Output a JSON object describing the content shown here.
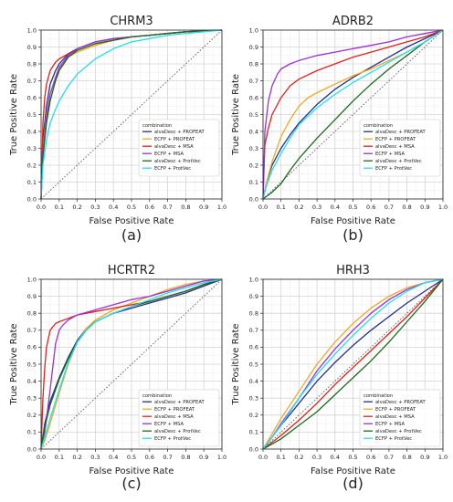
{
  "figure": {
    "series_colors": {
      "alvaDesc + PROFEAT": "#1f2f8f",
      "ECFP + PROFEAT": "#f5a623",
      "alvaDesc + MSA": "#e3201b",
      "ECFP + MSA": "#9b30d9",
      "alvaDesc + ProtVec": "#1a6b1a",
      "ECFP + ProtVec": "#22e0f0"
    },
    "diagonal_color": "#555555"
  },
  "chart_data": [
    {
      "type": "line",
      "panel_label": "(a)",
      "title": "CHRM3",
      "xlabel": "False Positive Rate",
      "ylabel": "True Positive Rate",
      "xlim": [
        0,
        1
      ],
      "ylim": [
        0,
        1
      ],
      "xticks": [
        "0.0",
        "0.1",
        "0.2",
        "0.3",
        "0.4",
        "0.5",
        "0.6",
        "0.7",
        "0.8",
        "0.9",
        "1.0"
      ],
      "yticks": [
        "0.0",
        "0.1",
        "0.2",
        "0.3",
        "0.4",
        "0.5",
        "0.6",
        "0.7",
        "0.8",
        "0.9",
        "1.0"
      ],
      "grid": true,
      "legend": {
        "title": "combination",
        "position": "center-right"
      },
      "series": [
        {
          "name": "alvaDesc + PROFEAT",
          "x": [
            0,
            0.01,
            0.03,
            0.05,
            0.08,
            0.1,
            0.15,
            0.2,
            0.3,
            0.4,
            0.5,
            0.6,
            0.7,
            0.8,
            0.9,
            1.0
          ],
          "y": [
            0,
            0.35,
            0.55,
            0.68,
            0.76,
            0.8,
            0.86,
            0.89,
            0.93,
            0.95,
            0.96,
            0.97,
            0.98,
            0.99,
            0.995,
            1.0
          ]
        },
        {
          "name": "ECFP + PROFEAT",
          "x": [
            0,
            0.01,
            0.03,
            0.05,
            0.08,
            0.1,
            0.15,
            0.2,
            0.3,
            0.4,
            0.5,
            0.6,
            0.7,
            0.8,
            0.9,
            1.0
          ],
          "y": [
            0,
            0.3,
            0.5,
            0.62,
            0.72,
            0.77,
            0.84,
            0.87,
            0.91,
            0.94,
            0.96,
            0.97,
            0.98,
            0.99,
            0.995,
            1.0
          ]
        },
        {
          "name": "alvaDesc + MSA",
          "x": [
            0,
            0.01,
            0.02,
            0.03,
            0.05,
            0.08,
            0.1,
            0.15,
            0.2,
            0.3,
            0.4,
            0.5,
            0.6,
            0.7,
            0.8,
            0.9,
            1.0
          ],
          "y": [
            0,
            0.45,
            0.6,
            0.68,
            0.76,
            0.81,
            0.83,
            0.86,
            0.88,
            0.92,
            0.94,
            0.96,
            0.97,
            0.98,
            0.99,
            0.995,
            1.0
          ]
        },
        {
          "name": "ECFP + MSA",
          "x": [
            0,
            0.01,
            0.03,
            0.05,
            0.08,
            0.1,
            0.15,
            0.2,
            0.3,
            0.4,
            0.5,
            0.6,
            0.7,
            0.8,
            0.9,
            1.0
          ],
          "y": [
            0,
            0.28,
            0.48,
            0.62,
            0.72,
            0.78,
            0.85,
            0.89,
            0.93,
            0.95,
            0.96,
            0.97,
            0.98,
            0.99,
            0.995,
            1.0
          ]
        },
        {
          "name": "alvaDesc + ProtVec",
          "x": [
            0,
            0.01,
            0.03,
            0.05,
            0.08,
            0.1,
            0.15,
            0.2,
            0.3,
            0.4,
            0.5,
            0.6,
            0.7,
            0.8,
            0.9,
            1.0
          ],
          "y": [
            0,
            0.25,
            0.45,
            0.58,
            0.7,
            0.76,
            0.84,
            0.88,
            0.92,
            0.94,
            0.96,
            0.97,
            0.98,
            0.99,
            0.995,
            1.0
          ]
        },
        {
          "name": "ECFP + ProtVec",
          "x": [
            0,
            0.01,
            0.03,
            0.05,
            0.08,
            0.1,
            0.15,
            0.2,
            0.3,
            0.4,
            0.5,
            0.6,
            0.7,
            0.8,
            0.9,
            1.0
          ],
          "y": [
            0,
            0.2,
            0.35,
            0.45,
            0.53,
            0.58,
            0.67,
            0.74,
            0.83,
            0.89,
            0.93,
            0.95,
            0.97,
            0.98,
            0.99,
            1.0
          ]
        }
      ]
    },
    {
      "type": "line",
      "panel_label": "(b)",
      "title": "ADRB2",
      "xlabel": "False Positive Rate",
      "ylabel": "True Positive Rate",
      "xlim": [
        0,
        1
      ],
      "ylim": [
        0,
        1
      ],
      "xticks": [
        "0.0",
        "0.1",
        "0.2",
        "0.3",
        "0.4",
        "0.5",
        "0.6",
        "0.7",
        "0.8",
        "0.9",
        "1.0"
      ],
      "yticks": [
        "0.0",
        "0.1",
        "0.2",
        "0.3",
        "0.4",
        "0.5",
        "0.6",
        "0.7",
        "0.8",
        "0.9",
        "1.0"
      ],
      "grid": true,
      "legend": {
        "title": "combination",
        "position": "center-right"
      },
      "series": [
        {
          "name": "alvaDesc + PROFEAT",
          "x": [
            0,
            0.02,
            0.05,
            0.1,
            0.15,
            0.2,
            0.3,
            0.4,
            0.5,
            0.6,
            0.7,
            0.8,
            0.9,
            1.0
          ],
          "y": [
            0,
            0.1,
            0.2,
            0.3,
            0.38,
            0.45,
            0.56,
            0.65,
            0.72,
            0.78,
            0.84,
            0.9,
            0.95,
            1.0
          ]
        },
        {
          "name": "ECFP + PROFEAT",
          "x": [
            0,
            0.02,
            0.05,
            0.1,
            0.15,
            0.2,
            0.25,
            0.3,
            0.4,
            0.5,
            0.6,
            0.7,
            0.8,
            0.9,
            1.0
          ],
          "y": [
            0,
            0.1,
            0.22,
            0.37,
            0.47,
            0.55,
            0.6,
            0.63,
            0.68,
            0.73,
            0.77,
            0.82,
            0.87,
            0.93,
            1.0
          ]
        },
        {
          "name": "alvaDesc + MSA",
          "x": [
            0,
            0.01,
            0.03,
            0.05,
            0.1,
            0.15,
            0.2,
            0.3,
            0.4,
            0.5,
            0.6,
            0.7,
            0.8,
            0.9,
            1.0
          ],
          "y": [
            0,
            0.32,
            0.42,
            0.5,
            0.6,
            0.67,
            0.71,
            0.76,
            0.8,
            0.84,
            0.87,
            0.9,
            0.93,
            0.96,
            1.0
          ]
        },
        {
          "name": "ECFP + MSA",
          "x": [
            0,
            0.01,
            0.03,
            0.05,
            0.08,
            0.1,
            0.15,
            0.2,
            0.3,
            0.4,
            0.5,
            0.6,
            0.7,
            0.8,
            0.9,
            1.0
          ],
          "y": [
            0,
            0.4,
            0.58,
            0.67,
            0.74,
            0.77,
            0.8,
            0.82,
            0.85,
            0.87,
            0.89,
            0.91,
            0.93,
            0.96,
            0.98,
            1.0
          ]
        },
        {
          "name": "alvaDesc + ProtVec",
          "x": [
            0,
            0.05,
            0.1,
            0.15,
            0.2,
            0.3,
            0.4,
            0.5,
            0.6,
            0.7,
            0.8,
            0.9,
            1.0
          ],
          "y": [
            0,
            0.04,
            0.09,
            0.17,
            0.24,
            0.36,
            0.47,
            0.58,
            0.68,
            0.77,
            0.85,
            0.93,
            1.0
          ]
        },
        {
          "name": "ECFP + ProtVec",
          "x": [
            0,
            0.02,
            0.05,
            0.1,
            0.15,
            0.2,
            0.3,
            0.4,
            0.5,
            0.6,
            0.7,
            0.8,
            0.9,
            1.0
          ],
          "y": [
            0,
            0.08,
            0.17,
            0.27,
            0.36,
            0.44,
            0.54,
            0.62,
            0.69,
            0.75,
            0.81,
            0.87,
            0.93,
            1.0
          ]
        }
      ]
    },
    {
      "type": "line",
      "panel_label": "(c)",
      "title": "HCRTR2",
      "xlabel": "False Positive Rate",
      "ylabel": "True Positive Rate",
      "xlim": [
        0,
        1
      ],
      "ylim": [
        0,
        1
      ],
      "xticks": [
        "0.0",
        "0.1",
        "0.2",
        "0.3",
        "0.4",
        "0.5",
        "0.6",
        "0.7",
        "0.8",
        "0.9",
        "1.0"
      ],
      "yticks": [
        "0.0",
        "0.1",
        "0.2",
        "0.3",
        "0.4",
        "0.5",
        "0.6",
        "0.7",
        "0.8",
        "0.9",
        "1.0"
      ],
      "grid": true,
      "legend": {
        "title": "combination",
        "position": "lower-right"
      },
      "series": [
        {
          "name": "alvaDesc + PROFEAT",
          "x": [
            0,
            0.02,
            0.05,
            0.1,
            0.15,
            0.2,
            0.25,
            0.3,
            0.4,
            0.5,
            0.6,
            0.7,
            0.8,
            0.9,
            1.0
          ],
          "y": [
            0,
            0.15,
            0.28,
            0.42,
            0.54,
            0.64,
            0.71,
            0.75,
            0.8,
            0.83,
            0.86,
            0.89,
            0.92,
            0.96,
            1.0
          ]
        },
        {
          "name": "ECFP + PROFEAT",
          "x": [
            0,
            0.02,
            0.05,
            0.1,
            0.15,
            0.2,
            0.25,
            0.3,
            0.4,
            0.5,
            0.6,
            0.7,
            0.8,
            0.9,
            1.0
          ],
          "y": [
            0,
            0.05,
            0.15,
            0.33,
            0.5,
            0.63,
            0.71,
            0.76,
            0.82,
            0.86,
            0.9,
            0.94,
            0.97,
            0.99,
            1.0
          ]
        },
        {
          "name": "alvaDesc + MSA",
          "x": [
            0,
            0.01,
            0.02,
            0.03,
            0.05,
            0.08,
            0.1,
            0.15,
            0.2,
            0.3,
            0.4,
            0.5,
            0.6,
            0.7,
            0.8,
            0.9,
            1.0
          ],
          "y": [
            0,
            0.3,
            0.48,
            0.6,
            0.7,
            0.74,
            0.75,
            0.77,
            0.79,
            0.81,
            0.83,
            0.85,
            0.87,
            0.9,
            0.93,
            0.97,
            1.0
          ]
        },
        {
          "name": "ECFP + MSA",
          "x": [
            0,
            0.02,
            0.05,
            0.08,
            0.1,
            0.12,
            0.15,
            0.2,
            0.3,
            0.4,
            0.5,
            0.6,
            0.7,
            0.8,
            0.9,
            1.0
          ],
          "y": [
            0,
            0.1,
            0.35,
            0.62,
            0.7,
            0.73,
            0.76,
            0.79,
            0.82,
            0.85,
            0.88,
            0.9,
            0.93,
            0.96,
            0.99,
            1.0
          ]
        },
        {
          "name": "alvaDesc + ProtVec",
          "x": [
            0,
            0.02,
            0.05,
            0.1,
            0.15,
            0.2,
            0.25,
            0.3,
            0.4,
            0.5,
            0.6,
            0.7,
            0.8,
            0.9,
            1.0
          ],
          "y": [
            0,
            0.13,
            0.26,
            0.41,
            0.53,
            0.63,
            0.7,
            0.75,
            0.8,
            0.84,
            0.87,
            0.9,
            0.93,
            0.97,
            1.0
          ]
        },
        {
          "name": "ECFP + ProtVec",
          "x": [
            0,
            0.02,
            0.05,
            0.1,
            0.15,
            0.2,
            0.25,
            0.3,
            0.4,
            0.5,
            0.6,
            0.7,
            0.8,
            0.9,
            1.0
          ],
          "y": [
            0,
            0.07,
            0.18,
            0.35,
            0.51,
            0.63,
            0.7,
            0.75,
            0.8,
            0.84,
            0.88,
            0.92,
            0.95,
            0.98,
            1.0
          ]
        }
      ]
    },
    {
      "type": "line",
      "panel_label": "(d)",
      "title": "HRH3",
      "xlabel": "False Positive Rate",
      "ylabel": "True Positive Rate",
      "xlim": [
        0,
        1
      ],
      "ylim": [
        0,
        1
      ],
      "xticks": [
        "0.0",
        "0.1",
        "0.2",
        "0.3",
        "0.4",
        "0.5",
        "0.6",
        "0.7",
        "0.8",
        "0.9",
        "1.0"
      ],
      "yticks": [
        "0.0",
        "0.1",
        "0.2",
        "0.3",
        "0.4",
        "0.5",
        "0.6",
        "0.7",
        "0.8",
        "0.9",
        "1.0"
      ],
      "grid": true,
      "legend": {
        "title": "combination",
        "position": "lower-right"
      },
      "series": [
        {
          "name": "alvaDesc + PROFEAT",
          "x": [
            0,
            0.05,
            0.1,
            0.2,
            0.3,
            0.4,
            0.5,
            0.6,
            0.7,
            0.8,
            0.9,
            1.0
          ],
          "y": [
            0,
            0.07,
            0.14,
            0.27,
            0.4,
            0.51,
            0.61,
            0.7,
            0.78,
            0.86,
            0.93,
            1.0
          ]
        },
        {
          "name": "ECFP + PROFEAT",
          "x": [
            0,
            0.05,
            0.1,
            0.2,
            0.3,
            0.4,
            0.5,
            0.6,
            0.7,
            0.8,
            0.9,
            1.0
          ],
          "y": [
            0,
            0.09,
            0.18,
            0.34,
            0.5,
            0.63,
            0.74,
            0.83,
            0.9,
            0.95,
            0.98,
            1.0
          ]
        },
        {
          "name": "alvaDesc + MSA",
          "x": [
            0,
            0.05,
            0.1,
            0.2,
            0.3,
            0.4,
            0.5,
            0.6,
            0.7,
            0.8,
            0.9,
            1.0
          ],
          "y": [
            0,
            0.04,
            0.08,
            0.17,
            0.27,
            0.38,
            0.48,
            0.58,
            0.68,
            0.78,
            0.89,
            1.0
          ]
        },
        {
          "name": "ECFP + MSA",
          "x": [
            0,
            0.05,
            0.1,
            0.2,
            0.3,
            0.4,
            0.5,
            0.6,
            0.7,
            0.8,
            0.9,
            1.0
          ],
          "y": [
            0,
            0.07,
            0.15,
            0.3,
            0.46,
            0.59,
            0.7,
            0.8,
            0.88,
            0.94,
            0.98,
            1.0
          ]
        },
        {
          "name": "alvaDesc + ProtVec",
          "x": [
            0,
            0.05,
            0.1,
            0.2,
            0.3,
            0.4,
            0.5,
            0.6,
            0.7,
            0.8,
            0.9,
            1.0
          ],
          "y": [
            0,
            0.03,
            0.06,
            0.14,
            0.22,
            0.32,
            0.42,
            0.52,
            0.63,
            0.75,
            0.87,
            1.0
          ]
        },
        {
          "name": "ECFP + ProtVec",
          "x": [
            0,
            0.05,
            0.1,
            0.2,
            0.3,
            0.4,
            0.5,
            0.6,
            0.7,
            0.8,
            0.9,
            1.0
          ],
          "y": [
            0,
            0.07,
            0.14,
            0.3,
            0.44,
            0.56,
            0.67,
            0.77,
            0.86,
            0.93,
            0.98,
            1.0
          ]
        }
      ]
    }
  ]
}
